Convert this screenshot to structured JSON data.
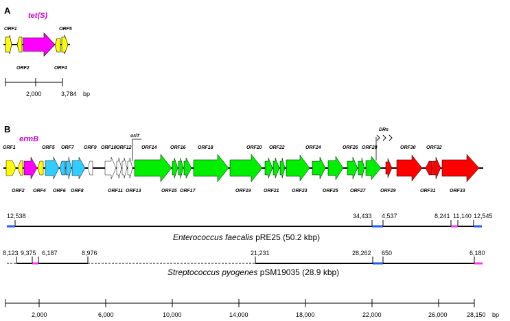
{
  "panel_a": {
    "label": "A",
    "gene_label": "tet(S)",
    "orf_labels": [
      "ORF1",
      "ORF2",
      "ORF4",
      "ORF5"
    ],
    "scale_labels": [
      "2,000",
      "3,784",
      "bp"
    ]
  },
  "panel_b": {
    "label": "B",
    "gene_label": "ermB",
    "oriT_label": "oriT",
    "drs_label": "DRs",
    "orf_labels_top": [
      "ORF1",
      "ORF5",
      "ORF7",
      "ORF9",
      "ORF10",
      "ORF12",
      "ORF14",
      "ORF16",
      "ORF18",
      "ORF20",
      "ORF22",
      "ORF24",
      "ORF26",
      "ORF28",
      "ORF30",
      "ORF32"
    ],
    "orf_labels_bottom": [
      "ORF2",
      "ORF4",
      "ORF6",
      "ORF8",
      "ORF11",
      "ORF13",
      "ORF15",
      "ORF17",
      "ORF19",
      "ORF21",
      "ORF23",
      "ORF25",
      "ORF27",
      "ORF29",
      "ORF31",
      "ORF33"
    ],
    "plasmid1": {
      "coords": [
        "12,538",
        "34,433",
        "4,537",
        "8,241",
        "11,140",
        "12,545"
      ],
      "name_species": "Enterococcus faecalis",
      "name_plasmid": " pRE25 (50.2 kbp)"
    },
    "plasmid2": {
      "coords": [
        "8,123",
        "9,375",
        "6,187",
        "8,976",
        "21,231",
        "28,262",
        "650",
        "6,180"
      ],
      "name_species": "Streptococcus pyogenes",
      "name_plasmid": " pSM19035 (28.9 kbp)"
    },
    "scale_ticks": [
      "2,000",
      "6,000",
      "10,000",
      "14,000",
      "18,000",
      "22,000",
      "26,000",
      "28,150",
      "bp"
    ]
  },
  "colors": {
    "yellow": "#ffff00",
    "magenta": "#ff00ff",
    "cyan": "#33ccff",
    "green": "#00ee00",
    "red": "#ff0000",
    "blue_segment": "#1e5bff",
    "pink_segment": "#ff33ff"
  }
}
